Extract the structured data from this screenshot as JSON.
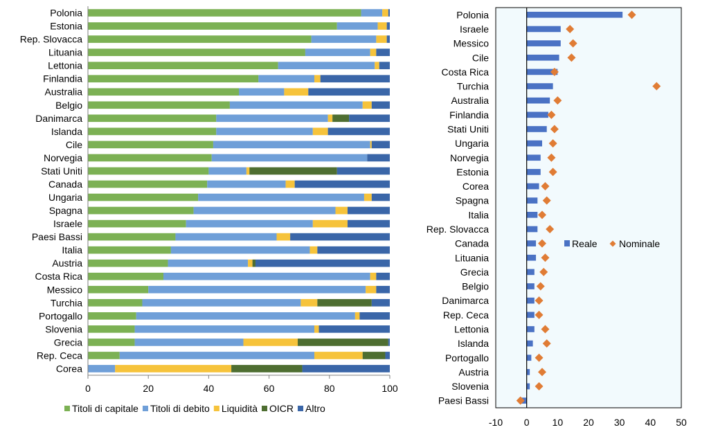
{
  "chart_data": [
    {
      "type": "bar",
      "orientation": "horizontal",
      "stacked": true,
      "categories": [
        "Polonia",
        "Estonia",
        "Rep. Slovacca",
        "Lituania",
        "Lettonia",
        "Finlandia",
        "Australia",
        "Belgio",
        "Danimarca",
        "Islanda",
        "Cile",
        "Norvegia",
        "Stati Uniti",
        "Canada",
        "Ungaria",
        "Spagna",
        "Israele",
        "Paesi Bassi",
        "Italia",
        "Austria",
        "Costa Rica",
        "Messico",
        "Turchia",
        "Portogallo",
        "Slovenia",
        "Grecia",
        "Rep. Ceca",
        "Corea"
      ],
      "series": [
        {
          "name": "Titoli di capitale",
          "color": "#7cb154",
          "values": [
            90.5,
            82.5,
            74,
            72,
            63,
            56.5,
            50,
            47,
            42.5,
            42.5,
            41.5,
            41,
            40,
            39.5,
            36.5,
            35,
            32.5,
            29,
            27.5,
            26.5,
            25,
            20,
            18,
            16,
            15.5,
            15.5,
            10.5,
            0
          ]
        },
        {
          "name": "Titoli di debito",
          "color": "#6f9fd8",
          "values": [
            7,
            13.5,
            21.5,
            21.5,
            32,
            18.5,
            15,
            44,
            37,
            32,
            52,
            51.5,
            12.5,
            26,
            55,
            47,
            42,
            33.5,
            46,
            26.5,
            68.5,
            72,
            52.5,
            72.5,
            59.5,
            36,
            64.5,
            9
          ]
        },
        {
          "name": "Liquidità",
          "color": "#f6c33b",
          "values": [
            2,
            3,
            3.5,
            2,
            1.5,
            2,
            8,
            3,
            1.5,
            5,
            0.5,
            0,
            1,
            3,
            2.5,
            4,
            11.5,
            4.5,
            2.5,
            1.5,
            2,
            3.5,
            5.5,
            1.5,
            1.5,
            18,
            16,
            38.5
          ]
        },
        {
          "name": "OICR",
          "color": "#4e6e31",
          "values": [
            0,
            0,
            0,
            0,
            0,
            0,
            0,
            0,
            5.5,
            0,
            0,
            0,
            29,
            0,
            0,
            0,
            0,
            0,
            0,
            1,
            0,
            0,
            18,
            0,
            0,
            30,
            7.5,
            23.5
          ]
        },
        {
          "name": "Altro",
          "color": "#3a66a8",
          "values": [
            0.5,
            1,
            1,
            4.5,
            3.5,
            23,
            27,
            6,
            13.5,
            20.5,
            6,
            7.5,
            17.5,
            31.5,
            6,
            14,
            14,
            33,
            24,
            44.5,
            4.5,
            4.5,
            6,
            10,
            23.5,
            0.5,
            1.5,
            29
          ]
        }
      ],
      "xlim": [
        0,
        100
      ],
      "xticks": [
        "0",
        "20",
        "40",
        "60",
        "80",
        "100"
      ],
      "grid": false,
      "legend_position": "bottom"
    },
    {
      "type": "bar",
      "orientation": "horizontal",
      "categories": [
        "Polonia",
        "Israele",
        "Messico",
        "Cile",
        "Costa Rica",
        "Turchia",
        "Australia",
        "Finlandia",
        "Stati Uniti",
        "Ungaria",
        "Norvegia",
        "Estonia",
        "Corea",
        "Spagna",
        "Italia",
        "Rep. Slovacca",
        "Canada",
        "Lituania",
        "Grecia",
        "Belgio",
        "Danimarca",
        "Rep. Ceca",
        "Lettonia",
        "Islanda",
        "Portogallo",
        "Austria",
        "Slovenia",
        "Paesi Bassi"
      ],
      "series": [
        {
          "name": "Reale",
          "type": "bar",
          "color": "#4a72c4",
          "values": [
            31,
            11,
            11,
            10.5,
            10,
            8.5,
            7.5,
            7,
            6.5,
            5,
            4.5,
            4.5,
            4,
            3.5,
            3.5,
            3.5,
            3,
            3,
            2.5,
            2.5,
            2.5,
            2.5,
            2.5,
            2,
            1.5,
            1,
            1,
            -2.5
          ]
        },
        {
          "name": "Nominale",
          "type": "marker",
          "color": "#e07c35",
          "values": [
            34,
            14,
            15,
            14.5,
            9,
            42,
            10,
            8,
            9,
            8.5,
            8,
            8.5,
            6,
            6.5,
            5,
            7.5,
            5,
            6,
            5.5,
            4.5,
            4,
            4,
            6,
            6.5,
            4,
            5,
            4,
            -2
          ]
        }
      ],
      "xlim": [
        -10,
        50
      ],
      "xticks": [
        "-10",
        "0",
        "10",
        "20",
        "30",
        "40",
        "50"
      ],
      "grid": false,
      "legend_position": "right"
    }
  ]
}
